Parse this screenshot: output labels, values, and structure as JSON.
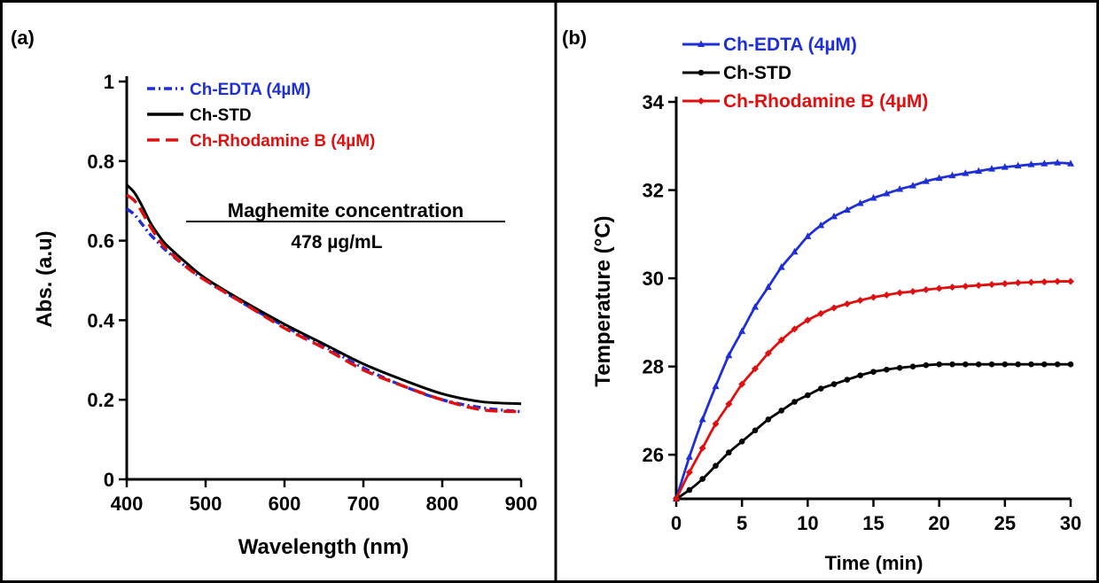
{
  "chart_data": [
    {
      "panel_label": "(a)",
      "type": "line",
      "xlabel": "Wavelength (nm)",
      "ylabel": "Abs. (a.u)",
      "xlim": [
        400,
        900
      ],
      "ylim": [
        0,
        1
      ],
      "x_ticks": [
        400,
        500,
        600,
        700,
        800,
        900
      ],
      "x_tick_labels": [
        "400",
        "500",
        "600",
        "700",
        "800",
        "900"
      ],
      "y_ticks": [
        0,
        0.2,
        0.4,
        0.6,
        0.8,
        1
      ],
      "y_tick_labels": [
        "0",
        "0.2",
        "0.4",
        "0.6",
        "0.8",
        "1"
      ],
      "grid": false,
      "legend_position": "top-left",
      "annotation": {
        "title": "Maghemite concentration",
        "value": "478 µg/mL"
      },
      "series": [
        {
          "name": "Ch-EDTA (4µM)",
          "color": "#1f2fd6",
          "style": "dashdot",
          "x": [
            400,
            410,
            420,
            430,
            440,
            450,
            475,
            500,
            550,
            600,
            650,
            700,
            750,
            800,
            850,
            900
          ],
          "y": [
            0.68,
            0.665,
            0.64,
            0.615,
            0.595,
            0.575,
            0.535,
            0.5,
            0.44,
            0.385,
            0.335,
            0.28,
            0.235,
            0.2,
            0.18,
            0.17
          ]
        },
        {
          "name": "Ch-STD",
          "color": "#000000",
          "style": "solid",
          "x": [
            400,
            410,
            420,
            430,
            440,
            450,
            475,
            500,
            550,
            600,
            650,
            700,
            750,
            800,
            850,
            900
          ],
          "y": [
            0.74,
            0.72,
            0.685,
            0.645,
            0.615,
            0.59,
            0.545,
            0.505,
            0.445,
            0.39,
            0.34,
            0.29,
            0.25,
            0.215,
            0.195,
            0.19
          ]
        },
        {
          "name": "Ch-Rhodamine B (4µM)",
          "color": "#e01010",
          "style": "dashed",
          "x": [
            400,
            410,
            420,
            430,
            440,
            450,
            475,
            500,
            550,
            600,
            650,
            700,
            750,
            800,
            850,
            900
          ],
          "y": [
            0.715,
            0.7,
            0.67,
            0.635,
            0.605,
            0.58,
            0.535,
            0.5,
            0.44,
            0.38,
            0.33,
            0.275,
            0.235,
            0.2,
            0.175,
            0.17
          ]
        }
      ]
    },
    {
      "panel_label": "(b)",
      "type": "line",
      "xlabel": "Time (min)",
      "ylabel": "Temperature (°C)",
      "xlim": [
        0,
        30
      ],
      "ylim": [
        25,
        34
      ],
      "x_ticks": [
        0,
        5,
        10,
        15,
        20,
        25,
        30
      ],
      "x_tick_labels": [
        "0",
        "5",
        "10",
        "15",
        "20",
        "25",
        "30"
      ],
      "y_ticks": [
        26,
        28,
        30,
        32,
        34
      ],
      "y_tick_labels": [
        "26",
        "28",
        "30",
        "32",
        "34"
      ],
      "grid": false,
      "legend_position": "top-left",
      "series": [
        {
          "name": "Ch-EDTA (4µM)",
          "color": "#1f2fd6",
          "marker": "triangle",
          "x": [
            0,
            1,
            2,
            3,
            4,
            5,
            6,
            7,
            8,
            9,
            10,
            11,
            12,
            13,
            14,
            15,
            16,
            17,
            18,
            19,
            20,
            21,
            22,
            23,
            24,
            25,
            26,
            27,
            28,
            29,
            30
          ],
          "y": [
            25.0,
            25.95,
            26.8,
            27.55,
            28.25,
            28.8,
            29.35,
            29.8,
            30.25,
            30.6,
            30.95,
            31.2,
            31.4,
            31.55,
            31.7,
            31.82,
            31.92,
            32.02,
            32.1,
            32.2,
            32.27,
            32.33,
            32.38,
            32.43,
            32.48,
            32.52,
            32.55,
            32.58,
            32.6,
            32.62,
            32.6
          ]
        },
        {
          "name": "Ch-STD",
          "color": "#000000",
          "marker": "circle",
          "x": [
            0,
            1,
            2,
            3,
            4,
            5,
            6,
            7,
            8,
            9,
            10,
            11,
            12,
            13,
            14,
            15,
            16,
            17,
            18,
            19,
            20,
            21,
            22,
            23,
            24,
            25,
            26,
            27,
            28,
            29,
            30
          ],
          "y": [
            25.0,
            25.2,
            25.45,
            25.75,
            26.05,
            26.3,
            26.55,
            26.8,
            27.0,
            27.2,
            27.35,
            27.5,
            27.6,
            27.7,
            27.8,
            27.88,
            27.93,
            27.97,
            28.0,
            28.03,
            28.05,
            28.05,
            28.05,
            28.05,
            28.05,
            28.05,
            28.05,
            28.05,
            28.05,
            28.05,
            28.05
          ]
        },
        {
          "name": "Ch-Rhodamine B (4µM)",
          "color": "#e01010",
          "marker": "diamond",
          "x": [
            0,
            1,
            2,
            3,
            4,
            5,
            6,
            7,
            8,
            9,
            10,
            11,
            12,
            13,
            14,
            15,
            16,
            17,
            18,
            19,
            20,
            21,
            22,
            23,
            24,
            25,
            26,
            27,
            28,
            29,
            30
          ],
          "y": [
            25.0,
            25.6,
            26.15,
            26.7,
            27.15,
            27.6,
            27.95,
            28.3,
            28.6,
            28.85,
            29.05,
            29.2,
            29.33,
            29.42,
            29.5,
            29.57,
            29.62,
            29.67,
            29.7,
            29.74,
            29.77,
            29.8,
            29.82,
            29.84,
            29.86,
            29.88,
            29.9,
            29.91,
            29.92,
            29.93,
            29.93
          ]
        }
      ]
    }
  ]
}
